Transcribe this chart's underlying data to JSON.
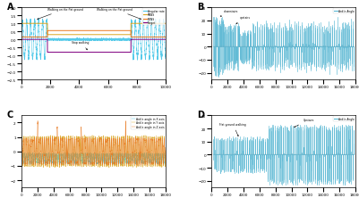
{
  "panel_A": {
    "label": "A",
    "legend": [
      "Angular rate",
      "PNNS",
      "PDNS",
      "Target"
    ],
    "legend_colors": [
      "#4DC8E8",
      "#DAA520",
      "#E87820",
      "#800080"
    ],
    "xlim": [
      0,
      10000
    ],
    "ylim": [
      -2.5,
      2.0
    ]
  },
  "panel_B": {
    "label": "B",
    "legend": [
      "Ankle Angle"
    ],
    "legend_colors": [
      "#5BB8D4"
    ],
    "annotations": [
      "downstairs",
      "upstairs"
    ],
    "xlim": [
      0,
      18000
    ],
    "ylim": [
      -25,
      30
    ]
  },
  "panel_C": {
    "label": "C",
    "legend": [
      "Ankle angle in X axis",
      "Ankle angle in Y axis",
      "Ankle angle in Z axis"
    ],
    "legend_colors": [
      "#4DC8E8",
      "#DAA520",
      "#E87820"
    ],
    "xlim": [
      0,
      18000
    ],
    "ylim": [
      -2.5,
      2.5
    ]
  },
  "panel_D": {
    "label": "D",
    "legend": [
      "Ankle Angle"
    ],
    "legend_colors": [
      "#5BB8D4"
    ],
    "annotations": [
      "Flat-ground walking",
      "Upstairs"
    ],
    "xlim": [
      0,
      18000
    ],
    "ylim": [
      -25,
      30
    ]
  },
  "background_color": "#ffffff",
  "figure_width": 4.01,
  "figure_height": 2.32,
  "dpi": 100
}
